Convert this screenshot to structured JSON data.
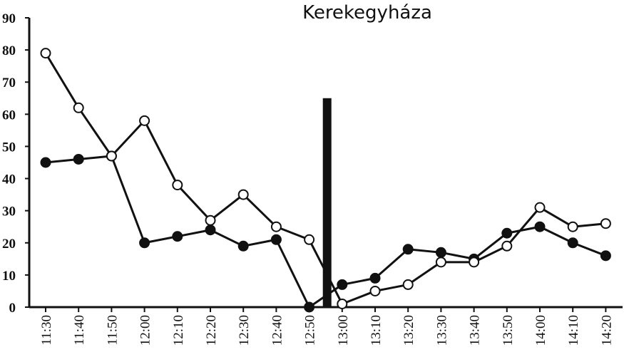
{
  "chart_data": {
    "type": "line",
    "title": "Kerekegyháza",
    "xlabel": "",
    "ylabel": "",
    "categories": [
      "11:30",
      "11:40",
      "11:50",
      "12:00",
      "12:10",
      "12:20",
      "12:30",
      "12:40",
      "12:50",
      "13:00",
      "13:10",
      "13:20",
      "13:30",
      "13:40",
      "13:50",
      "14:00",
      "14:10",
      "14:20"
    ],
    "yticks": [
      "0",
      "10",
      "20",
      "30",
      "40",
      "50",
      "60",
      "70",
      "80",
      "90"
    ],
    "ylim": [
      0,
      90
    ],
    "grid": false,
    "series": [
      {
        "marker": "filled-circle",
        "color": "#111111",
        "values": [
          45,
          46,
          47,
          20,
          22,
          24,
          19,
          21,
          0,
          7,
          9,
          18,
          17,
          15,
          23,
          25,
          20,
          16
        ]
      },
      {
        "marker": "open-circle",
        "color": "#111111",
        "values": [
          79,
          62,
          47,
          58,
          38,
          27,
          35,
          25,
          21,
          1,
          5,
          7,
          14,
          14,
          19,
          31,
          25,
          26
        ]
      }
    ],
    "annotations": [
      {
        "type": "vertical-bar",
        "x_between": [
          "12:50",
          "13:00"
        ],
        "y_top": 65,
        "color": "#111111"
      }
    ]
  }
}
